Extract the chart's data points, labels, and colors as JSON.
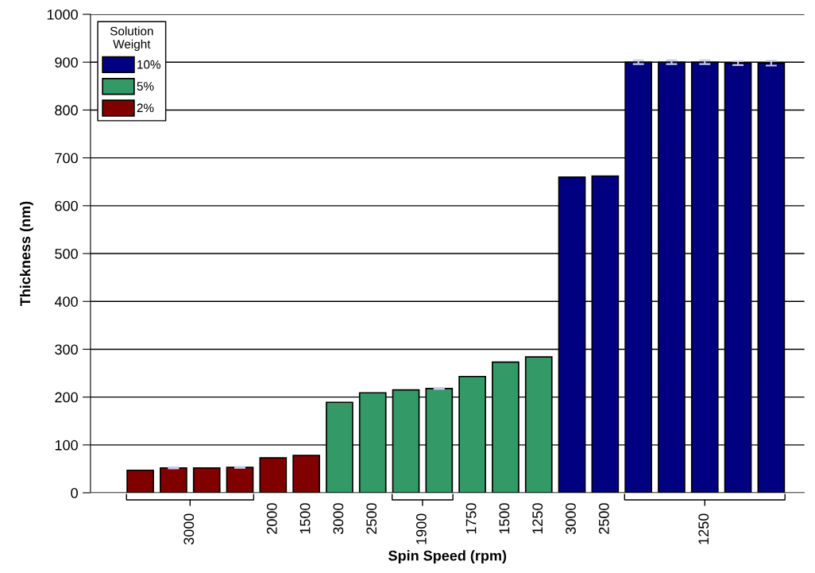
{
  "chart_data": {
    "type": "bar",
    "xlabel": "Spin Speed (rpm)",
    "ylabel": "Thickness (nm)",
    "legend_title": "Solution\nWeight",
    "categories": [
      null,
      null,
      null,
      null,
      "2000",
      "1500",
      "3000",
      "2500",
      null,
      null,
      "1750",
      "1500",
      "1250",
      "3000",
      "2500",
      null,
      null,
      null,
      null,
      null
    ],
    "annotations": [
      "3000",
      "1900",
      "1250"
    ],
    "series": [
      {
        "name": "10%",
        "color": "#000080",
        "values": [
          null,
          null,
          null,
          null,
          null,
          null,
          null,
          null,
          null,
          null,
          null,
          null,
          null,
          660,
          662,
          900,
          900,
          900,
          898,
          898
        ],
        "errors": [
          null,
          null,
          null,
          null,
          null,
          null,
          null,
          null,
          null,
          null,
          null,
          null,
          null,
          null,
          null,
          4,
          4,
          4,
          4,
          5
        ]
      },
      {
        "name": "5%",
        "color": "#339966",
        "values": [
          null,
          null,
          null,
          null,
          null,
          null,
          189,
          209,
          215,
          218,
          243,
          273,
          284,
          null,
          null,
          null,
          null,
          null,
          null,
          null
        ],
        "errors": [
          null,
          null,
          null,
          null,
          null,
          null,
          null,
          null,
          null,
          1,
          null,
          null,
          null,
          null,
          null,
          null,
          null,
          null,
          null,
          null
        ]
      },
      {
        "name": "2%",
        "color": "#800000",
        "values": [
          47,
          52,
          52,
          53,
          73,
          78,
          null,
          null,
          null,
          null,
          null,
          null,
          null,
          null,
          null,
          null,
          null,
          null,
          null,
          null
        ],
        "errors": [
          null,
          1,
          null,
          1,
          null,
          null,
          null,
          null,
          null,
          null,
          null,
          null,
          null,
          null,
          null,
          null,
          null,
          null,
          null,
          null
        ]
      }
    ],
    "ylim": [
      0,
      1000
    ],
    "yticks": [
      0,
      100,
      200,
      300,
      400,
      500,
      600,
      700,
      800,
      900,
      1000
    ],
    "grid": "y",
    "legend": "top left"
  }
}
